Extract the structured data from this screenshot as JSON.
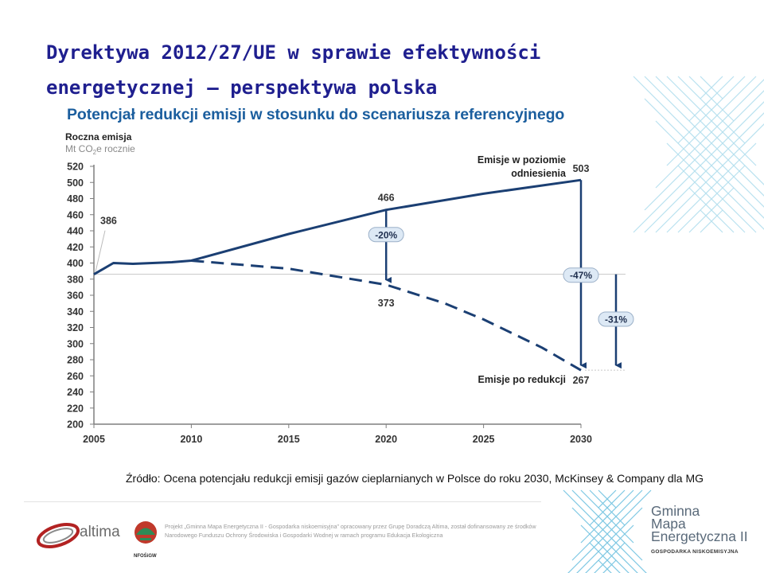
{
  "slide": {
    "title_line1": "Dyrektywa 2012/27/UE w sprawie efektywności",
    "title_line2": "energetycznej – perspektywa polska",
    "source": "Źródło: Ocena potencjału redukcji emisji gazów cieplarnianych w Polsce do roku 2030, McKinsey & Company dla MG"
  },
  "footer": {
    "altima_logo": "altima",
    "nfosigw_logo": "NFOŚiGW",
    "project_note": "Projekt „Gminna Mapa Energetyczna II - Gospodarka niskoemisyjna” opracowany przez Grupę Doradczą Altima, został dofinansowany ze środków Narodowego Funduszu Ochrony Środowiska i Gospodarki Wodnej w ramach programu Edukacja Ekologiczna",
    "brand_line1": "Gminna",
    "brand_line2": "Mapa",
    "brand_line3": "Energetyczna II",
    "brand_sub": "GOSPODARKA NISKOEMISYJNA"
  },
  "colors": {
    "title": "#1f1f8f",
    "chart_title": "#1b5e9e",
    "series": "#1b3f73",
    "axis": "#7f7f7f",
    "badge_fill": "#dde9f5",
    "lattice": "#7ec8e3"
  },
  "chart_data": {
    "type": "line",
    "title": "Potencjał redukcji emisji w stosunku do scenariusza referencyjnego",
    "ylabel_line1": "Roczna emisja",
    "ylabel_unit_pre": "Mt CO",
    "ylabel_unit_sub": "2",
    "ylabel_unit_post": "e rocznie",
    "xlim": [
      2005,
      2030
    ],
    "ylim": [
      200,
      520
    ],
    "x_ticks": [
      "2005",
      "2010",
      "2015",
      "2020",
      "2025",
      "2030"
    ],
    "y_ticks": [
      "200",
      "220",
      "240",
      "260",
      "280",
      "300",
      "320",
      "340",
      "360",
      "380",
      "400",
      "420",
      "440",
      "460",
      "480",
      "500",
      "520"
    ],
    "series": [
      {
        "name": "Emisje w poziomie odniesienia",
        "style": "solid",
        "points": [
          [
            2005,
            386
          ],
          [
            2006,
            400
          ],
          [
            2007,
            399
          ],
          [
            2008,
            400
          ],
          [
            2009,
            401
          ],
          [
            2010,
            403
          ],
          [
            2015,
            436
          ],
          [
            2020,
            466
          ],
          [
            2025,
            486
          ],
          [
            2030,
            503
          ]
        ]
      },
      {
        "name": "Emisje po redukcji",
        "style": "dashed",
        "points": [
          [
            2010,
            403
          ],
          [
            2015,
            393
          ],
          [
            2020,
            373
          ],
          [
            2023,
            350
          ],
          [
            2025,
            330
          ],
          [
            2028,
            295
          ],
          [
            2030,
            267
          ]
        ]
      }
    ],
    "series_label_baseline_1": "Emisje w poziomie",
    "series_label_baseline_2": "odniesienia",
    "series_label_reduced": "Emisje po redukcji",
    "point_labels": [
      {
        "year": 2005,
        "value": 386,
        "text": "386"
      },
      {
        "year": 2020,
        "value": 466,
        "text": "466"
      },
      {
        "year": 2020,
        "value": 373,
        "text": "373"
      },
      {
        "year": 2030,
        "value": 503,
        "text": "503"
      },
      {
        "year": 2030,
        "value": 267,
        "text": "267"
      }
    ],
    "reductions": [
      {
        "text": "-20%",
        "year": 2020,
        "from": 466,
        "to": 373
      },
      {
        "text": "-47%",
        "year": 2030,
        "from": 503,
        "to": 267
      },
      {
        "text": "-31%",
        "year": 2030,
        "from": 386,
        "to": 267,
        "offset": "right"
      }
    ]
  }
}
